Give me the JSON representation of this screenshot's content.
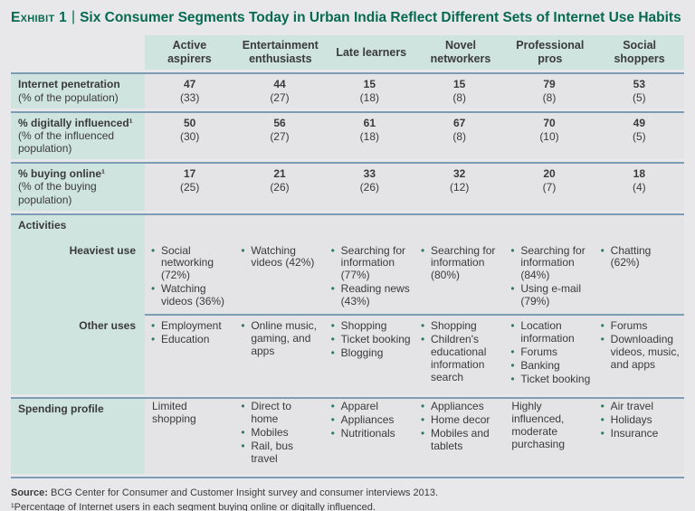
{
  "colors": {
    "page_bg": "#e8e8ea",
    "mint": "#cfe4de",
    "cell": "#e4e4e6",
    "rule": "#7e9cb4",
    "green": "#066a52",
    "bullet": "#2c7a58",
    "text": "#3a3a3c"
  },
  "title": {
    "exhibit_label": "Exhibit 1",
    "divider": "|",
    "text": "Six Consumer Segments Today in Urban India Reflect Different Sets of Internet Use Habits"
  },
  "table": {
    "columns": [
      "Active aspirers",
      "Entertainment enthusiasts",
      "Late learners",
      "Novel networkers",
      "Professional pros",
      "Social shoppers"
    ],
    "metrics": [
      {
        "label": "Internet penetration",
        "sublabel": "(% of the population)",
        "values": [
          "47",
          "44",
          "15",
          "15",
          "79",
          "53"
        ],
        "shares": [
          "(33)",
          "(27)",
          "(18)",
          "(8)",
          "(8)",
          "(5)"
        ]
      },
      {
        "label": "% digitally influenced¹",
        "sublabel": "(% of the influenced population)",
        "values": [
          "50",
          "56",
          "61",
          "67",
          "70",
          "49"
        ],
        "shares": [
          "(30)",
          "(27)",
          "(18)",
          "(8)",
          "(10)",
          "(5)"
        ]
      },
      {
        "label": "% buying online¹",
        "sublabel": "(% of the buying population)",
        "values": [
          "17",
          "21",
          "33",
          "32",
          "20",
          "18"
        ],
        "shares": [
          "(25)",
          "(26)",
          "(26)",
          "(12)",
          "(7)",
          "(4)"
        ]
      }
    ],
    "activities": {
      "section_label": "Activities",
      "heaviest": {
        "label": "Heaviest use",
        "cells": [
          [
            "Social networking (72%)",
            "Watching videos (36%)"
          ],
          [
            "Watching videos (42%)"
          ],
          [
            "Searching for information (77%)",
            "Reading news (43%)"
          ],
          [
            "Searching for information (80%)"
          ],
          [
            "Searching for information (84%)",
            "Using e-mail (79%)"
          ],
          [
            "Chatting (62%)"
          ]
        ]
      },
      "other": {
        "label": "Other uses",
        "cells": [
          [
            "Employment",
            "Education"
          ],
          [
            "Online music, gaming, and apps"
          ],
          [
            "Shopping",
            "Ticket booking",
            "Blogging"
          ],
          [
            "Shopping",
            "Children's educational information search"
          ],
          [
            "Location information",
            "Forums",
            "Banking",
            "Ticket booking"
          ],
          [
            "Forums",
            "Downloading videos, music, and apps"
          ]
        ]
      }
    },
    "spending": {
      "label": "Spending profile",
      "cells": [
        {
          "text": "Limited shopping"
        },
        {
          "items": [
            "Direct to home",
            "Mobiles",
            "Rail, bus travel"
          ]
        },
        {
          "items": [
            "Apparel",
            "Appliances",
            "Nutritionals"
          ]
        },
        {
          "items": [
            "Appliances",
            "Home decor",
            "Mobiles and tablets"
          ]
        },
        {
          "text": "Highly influenced, moderate purchasing"
        },
        {
          "items": [
            "Air travel",
            "Holidays",
            "Insurance"
          ]
        }
      ]
    }
  },
  "footer": {
    "source_label": "Source:",
    "source_text": "BCG Center for Consumer and Customer Insight survey and consumer interviews 2013.",
    "footnote": "¹Percentage of Internet users in each segment buying online or digitally influenced."
  }
}
